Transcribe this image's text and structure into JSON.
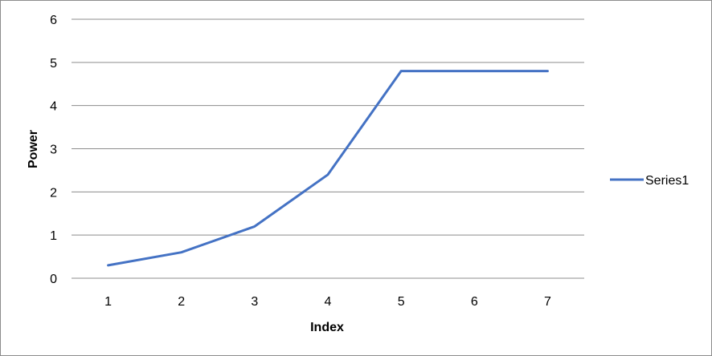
{
  "chart_data": {
    "type": "line",
    "title": "",
    "xlabel": "Index",
    "ylabel": "Power",
    "categories": [
      "1",
      "2",
      "3",
      "4",
      "5",
      "6",
      "7"
    ],
    "series": [
      {
        "name": "Series1",
        "color": "#4472C4",
        "values": [
          0.3,
          0.6,
          1.2,
          2.4,
          4.8,
          4.8,
          4.8
        ]
      }
    ],
    "ylim": [
      0,
      6
    ],
    "yticks": [
      "0",
      "1",
      "2",
      "3",
      "4",
      "5",
      "6"
    ],
    "grid": true,
    "legend": "right"
  }
}
